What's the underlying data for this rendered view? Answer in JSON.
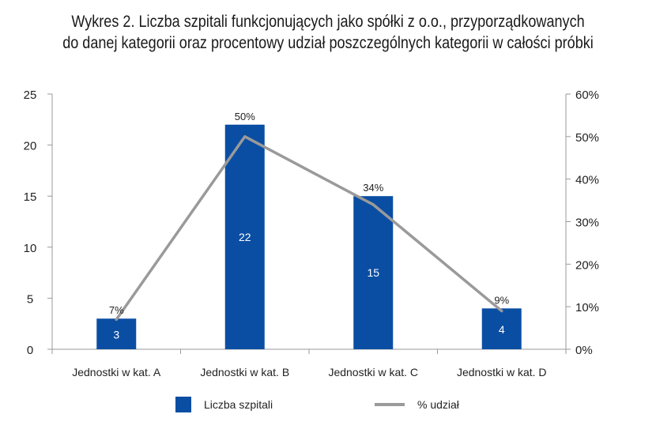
{
  "chart_data": {
    "type": "bar",
    "title_line1": "Wykres 2. Liczba szpitali funkcjonujących jako spółki z o.o., przyporządkowanych",
    "title_line2": "do danej kategorii oraz procentowy udział poszczególnych kategorii w całości próbki",
    "categories": [
      "Jednostki w kat. A",
      "Jednostki w kat. B",
      "Jednostki w kat. C",
      "Jednostki w kat. D"
    ],
    "series": [
      {
        "name": "Liczba szpitali",
        "type": "bar",
        "axis": "left",
        "values": [
          3,
          22,
          15,
          4
        ],
        "labels": [
          "3",
          "22",
          "15",
          "4"
        ],
        "color": "#0a4ea3"
      },
      {
        "name": "% udział",
        "type": "line",
        "axis": "right",
        "values": [
          7,
          50,
          34,
          9
        ],
        "labels": [
          "7%",
          "50%",
          "34%",
          "9%"
        ],
        "color": "#9a9a9a"
      }
    ],
    "ylim": [
      0,
      25
    ],
    "yticks": [
      "0",
      "5",
      "10",
      "15",
      "20",
      "25"
    ],
    "y2lim": [
      0,
      60
    ],
    "y2ticks": [
      "0%",
      "10%",
      "20%",
      "30%",
      "40%",
      "50%",
      "60%"
    ],
    "grid": false,
    "legend_position": "bottom"
  }
}
